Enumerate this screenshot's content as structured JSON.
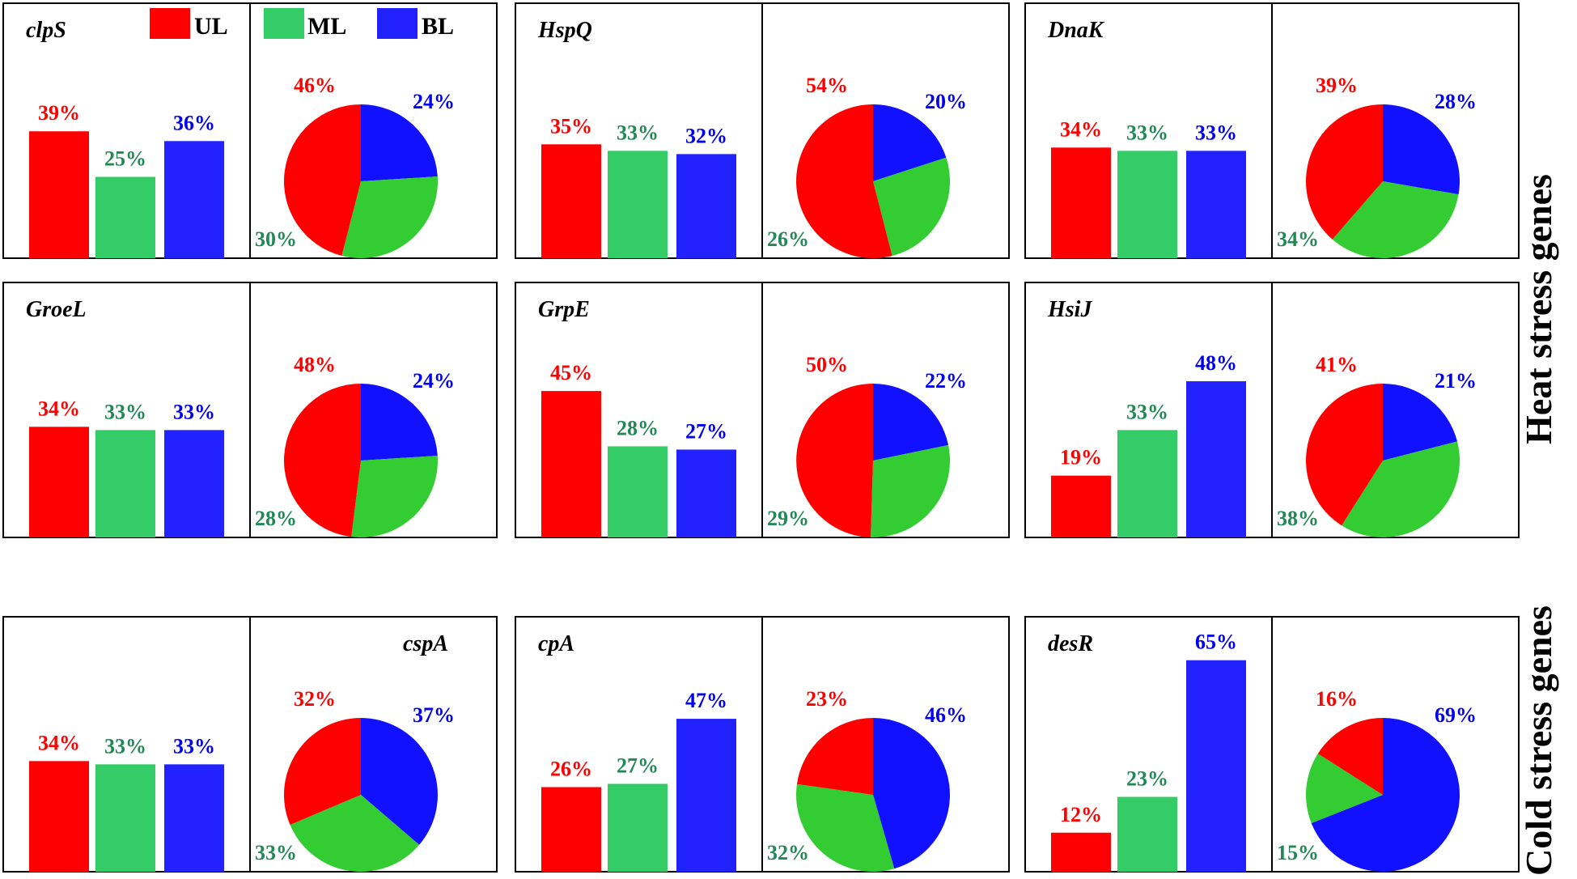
{
  "legend": {
    "UL": {
      "label": "UL",
      "color": "#ff0000"
    },
    "ML": {
      "label": "ML",
      "color": "#33cc66"
    },
    "BL": {
      "label": "BL",
      "color": "#2222ff"
    }
  },
  "pie_colors": {
    "UL": "#ff0000",
    "ML": "#33cc33",
    "BL": "#1111ff"
  },
  "label_colors": {
    "UL": "#ff0000",
    "ML": "#228855",
    "BL": "#0000ee"
  },
  "side_labels": {
    "heat": "Heat stress genes",
    "cold": "Cold stress genes"
  },
  "chart_data": [
    {
      "gene": "clpS",
      "group": "heat",
      "type": "bar+pie",
      "bar": {
        "categories": [
          "UL",
          "ML",
          "BL"
        ],
        "values": [
          39,
          25,
          36
        ],
        "labels": [
          "39%",
          "25%",
          "36%"
        ]
      },
      "pie": {
        "categories": [
          "UL",
          "ML",
          "BL"
        ],
        "values": [
          46,
          30,
          24
        ],
        "labels": [
          "46%",
          "30%",
          "24%"
        ]
      }
    },
    {
      "gene": "HspQ",
      "group": "heat",
      "type": "bar+pie",
      "bar": {
        "categories": [
          "UL",
          "ML",
          "BL"
        ],
        "values": [
          35,
          33,
          32
        ],
        "labels": [
          "35%",
          "33%",
          "32%"
        ]
      },
      "pie": {
        "categories": [
          "UL",
          "ML",
          "BL"
        ],
        "values": [
          54,
          26,
          20
        ],
        "labels": [
          "54%",
          "26%",
          "20%"
        ]
      }
    },
    {
      "gene": "DnaK",
      "group": "heat",
      "type": "bar+pie",
      "bar": {
        "categories": [
          "UL",
          "ML",
          "BL"
        ],
        "values": [
          34,
          33,
          33
        ],
        "labels": [
          "34%",
          "33%",
          "33%"
        ]
      },
      "pie": {
        "categories": [
          "UL",
          "ML",
          "BL"
        ],
        "values": [
          39,
          34,
          28
        ],
        "labels": [
          "39%",
          "34%",
          "28%"
        ]
      }
    },
    {
      "gene": "GroeL",
      "group": "heat",
      "type": "bar+pie",
      "bar": {
        "categories": [
          "UL",
          "ML",
          "BL"
        ],
        "values": [
          34,
          33,
          33
        ],
        "labels": [
          "34%",
          "33%",
          "33%"
        ]
      },
      "pie": {
        "categories": [
          "UL",
          "ML",
          "BL"
        ],
        "values": [
          48,
          28,
          24
        ],
        "labels": [
          "48%",
          "28%",
          "24%"
        ]
      }
    },
    {
      "gene": "GrpE",
      "group": "heat",
      "type": "bar+pie",
      "bar": {
        "categories": [
          "UL",
          "ML",
          "BL"
        ],
        "values": [
          45,
          28,
          27
        ],
        "labels": [
          "45%",
          "28%",
          "27%"
        ]
      },
      "pie": {
        "categories": [
          "UL",
          "ML",
          "BL"
        ],
        "values": [
          50,
          29,
          22
        ],
        "labels": [
          "50%",
          "29%",
          "22%"
        ]
      }
    },
    {
      "gene": "HsiJ",
      "group": "heat",
      "type": "bar+pie",
      "bar": {
        "categories": [
          "UL",
          "ML",
          "BL"
        ],
        "values": [
          19,
          33,
          48
        ],
        "labels": [
          "19%",
          "33%",
          "48%"
        ]
      },
      "pie": {
        "categories": [
          "UL",
          "ML",
          "BL"
        ],
        "values": [
          41,
          38,
          21
        ],
        "labels": [
          "41%",
          "38%",
          "21%"
        ]
      }
    },
    {
      "gene": "cspA",
      "group": "cold",
      "type": "bar+pie",
      "bar": {
        "categories": [
          "UL",
          "ML",
          "BL"
        ],
        "values": [
          34,
          33,
          33
        ],
        "labels": [
          "34%",
          "33%",
          "33%"
        ]
      },
      "pie": {
        "categories": [
          "UL",
          "ML",
          "BL"
        ],
        "values": [
          32,
          33,
          37
        ],
        "labels": [
          "32%",
          "33%",
          "37%"
        ]
      }
    },
    {
      "gene": "cpA",
      "group": "cold",
      "type": "bar+pie",
      "bar": {
        "categories": [
          "UL",
          "ML",
          "BL"
        ],
        "values": [
          26,
          27,
          47
        ],
        "labels": [
          "26%",
          "27%",
          "47%"
        ]
      },
      "pie": {
        "categories": [
          "UL",
          "ML",
          "BL"
        ],
        "values": [
          23,
          32,
          46
        ],
        "labels": [
          "23%",
          "32%",
          "46%"
        ]
      }
    },
    {
      "gene": "desR",
      "group": "cold",
      "type": "bar+pie",
      "bar": {
        "categories": [
          "UL",
          "ML",
          "BL"
        ],
        "values": [
          12,
          23,
          65
        ],
        "labels": [
          "12%",
          "23%",
          "65%"
        ]
      },
      "pie": {
        "categories": [
          "UL",
          "ML",
          "BL"
        ],
        "values": [
          16,
          15,
          69
        ],
        "labels": [
          "16%",
          "15%",
          "69%"
        ]
      }
    }
  ]
}
